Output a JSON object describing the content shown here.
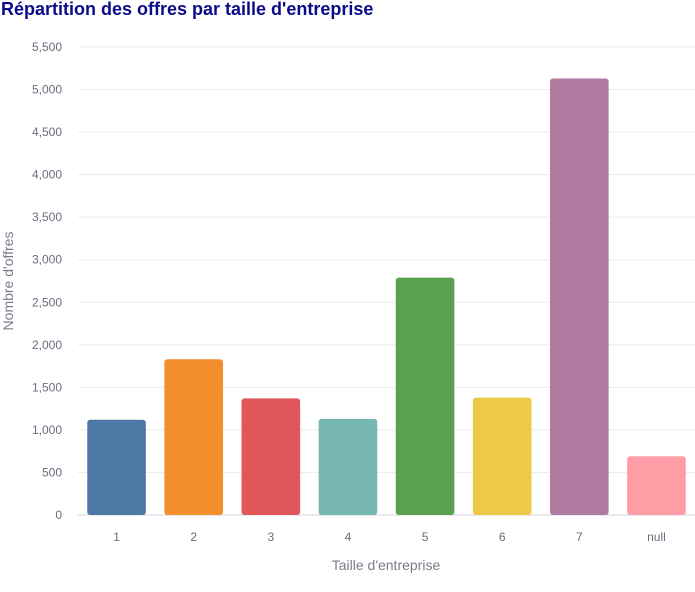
{
  "chart_data": {
    "type": "bar",
    "title": "Répartition des offres par taille d'entreprise",
    "xlabel": "Taille d'entreprise",
    "ylabel": "Nombre d'offres",
    "categories": [
      "1",
      "2",
      "3",
      "4",
      "5",
      "6",
      "7",
      "null"
    ],
    "values": [
      1120,
      1830,
      1370,
      1130,
      2790,
      1380,
      5130,
      690
    ],
    "colors": [
      "#4e79a7",
      "#f28e2b",
      "#e15759",
      "#76b7b2",
      "#59a14f",
      "#edc948",
      "#b07aa1",
      "#ff9da7"
    ],
    "ylim": [
      0,
      5500
    ],
    "yticks": [
      0,
      500,
      1000,
      1500,
      2000,
      2500,
      3000,
      3500,
      4000,
      4500,
      5000,
      5500
    ],
    "ytick_labels": [
      "0",
      "500",
      "1,000",
      "1,500",
      "2,000",
      "2,500",
      "3,000",
      "3,500",
      "4,000",
      "4,500",
      "5,000",
      "5,500"
    ],
    "grid": true,
    "legend": "none"
  }
}
